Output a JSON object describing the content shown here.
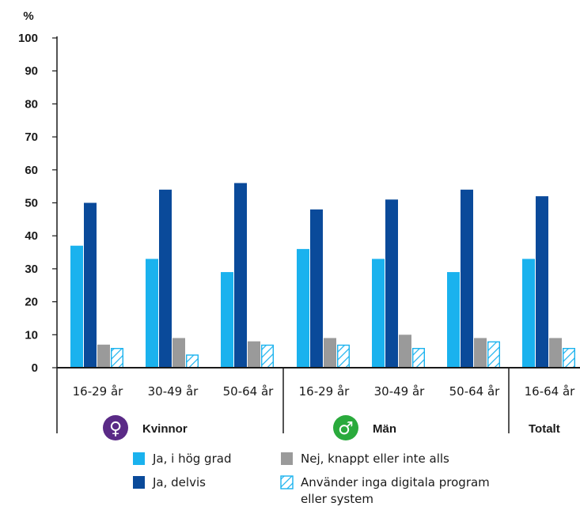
{
  "chart_data": {
    "type": "bar",
    "ylabel": "%",
    "ylim": [
      0,
      100
    ],
    "yticks": [
      0,
      10,
      20,
      30,
      40,
      50,
      60,
      70,
      80,
      90,
      100
    ],
    "categories": [
      "16-29 år",
      "30-49 år",
      "50-64 år",
      "16-29 år",
      "30-49 år",
      "50-64 år",
      "16-64 år"
    ],
    "groups": [
      {
        "label": "Kvinnor",
        "symbol": "♀",
        "color": "#5a2a86",
        "start": 0,
        "end": 2
      },
      {
        "label": "Män",
        "symbol": "♂",
        "color": "#2aaa3c",
        "start": 3,
        "end": 5
      },
      {
        "label": "Totalt",
        "symbol": "",
        "color": "",
        "start": 6,
        "end": 6
      }
    ],
    "series": [
      {
        "name": "Ja, i hög grad",
        "color": "#1ab2ee",
        "pattern": "solid",
        "values": [
          37,
          33,
          29,
          36,
          33,
          29,
          33
        ]
      },
      {
        "name": "Ja, delvis",
        "color": "#0a4a9a",
        "pattern": "solid",
        "values": [
          50,
          54,
          56,
          48,
          51,
          54,
          52
        ]
      },
      {
        "name": "Nej, knappt eller inte alls",
        "color": "#9a9a9a",
        "pattern": "solid",
        "values": [
          7,
          9,
          8,
          9,
          10,
          9,
          9
        ]
      },
      {
        "name": "Använder inga digitala program eller system",
        "color": "#1ab2ee",
        "pattern": "hatched",
        "values": [
          6,
          4,
          7,
          7,
          6,
          8,
          6
        ]
      }
    ],
    "legend": {
      "placement": "bottom",
      "items": [
        {
          "series": 0,
          "lines": [
            "Ja, i hög grad"
          ]
        },
        {
          "series": 2,
          "lines": [
            "Nej, knappt eller inte alls"
          ]
        },
        {
          "series": 1,
          "lines": [
            "Ja, delvis"
          ]
        },
        {
          "series": 3,
          "lines": [
            "Använder inga digitala program",
            "eller system"
          ]
        }
      ]
    }
  }
}
